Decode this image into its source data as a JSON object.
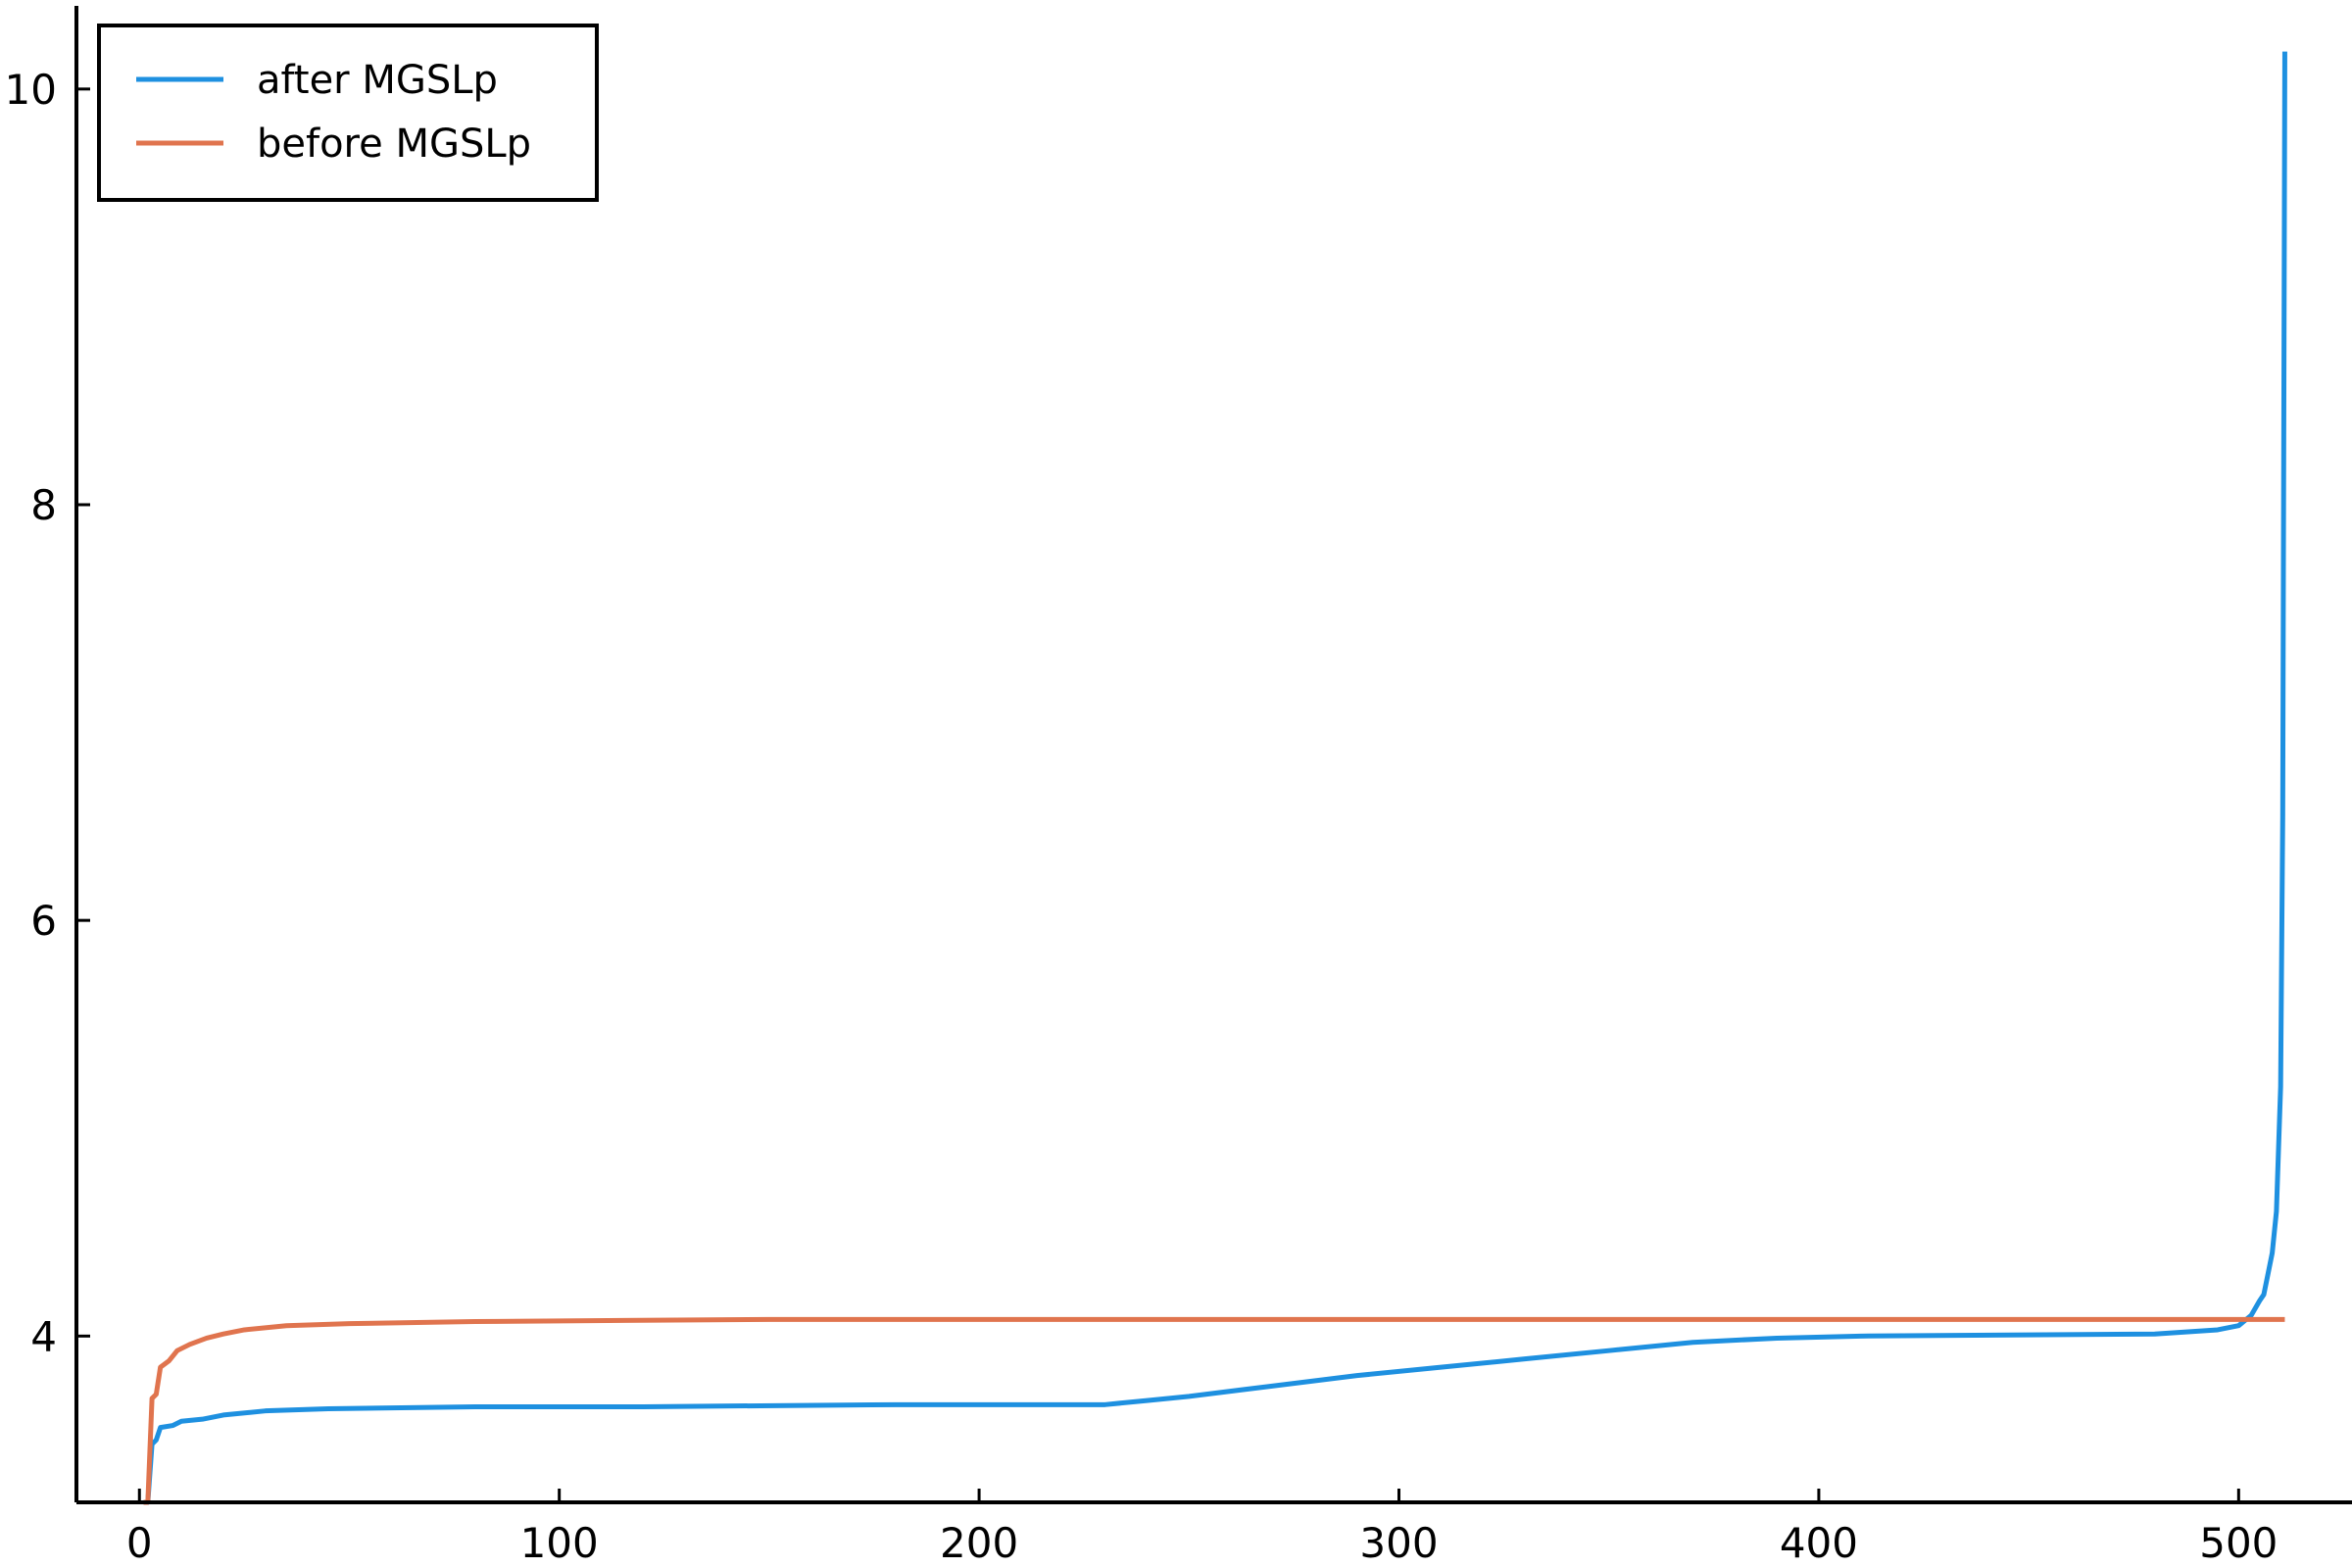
{
  "chart_data": {
    "type": "line",
    "title": "",
    "xlabel": "",
    "ylabel": "",
    "xlim": [
      -15,
      527
    ],
    "ylim": [
      3.2,
      10.4
    ],
    "x_ticks": [
      0,
      100,
      200,
      300,
      400,
      500
    ],
    "y_ticks": [
      4,
      6,
      8,
      10
    ],
    "x_tick_labels": [
      "0",
      "100",
      "200",
      "300",
      "400",
      "500"
    ],
    "y_tick_labels": [
      "4",
      "6",
      "8",
      "10"
    ],
    "grid": false,
    "legend_position": "top-left",
    "series": [
      {
        "name": "after MGSLp",
        "color": "#1e90e0",
        "points": [
          [
            1,
            3.2
          ],
          [
            2,
            3.2
          ],
          [
            3,
            3.48
          ],
          [
            4,
            3.5
          ],
          [
            5,
            3.56
          ],
          [
            8,
            3.57
          ],
          [
            10,
            3.59
          ],
          [
            15,
            3.6
          ],
          [
            20,
            3.62
          ],
          [
            30,
            3.64
          ],
          [
            45,
            3.65
          ],
          [
            80,
            3.66
          ],
          [
            120,
            3.66
          ],
          [
            180,
            3.67
          ],
          [
            230,
            3.67
          ],
          [
            240,
            3.69
          ],
          [
            250,
            3.71
          ],
          [
            270,
            3.76
          ],
          [
            290,
            3.81
          ],
          [
            310,
            3.85
          ],
          [
            330,
            3.89
          ],
          [
            350,
            3.93
          ],
          [
            370,
            3.97
          ],
          [
            390,
            3.99
          ],
          [
            410,
            4.0
          ],
          [
            480,
            4.01
          ],
          [
            495,
            4.03
          ],
          [
            500,
            4.05
          ],
          [
            503,
            4.1
          ],
          [
            505,
            4.17
          ],
          [
            506,
            4.2
          ],
          [
            507,
            4.3
          ],
          [
            508,
            4.4
          ],
          [
            509,
            4.6
          ],
          [
            510,
            5.2
          ],
          [
            510.5,
            6.5
          ],
          [
            511,
            10.18
          ]
        ]
      },
      {
        "name": "before MGSLp",
        "color": "#e0744e",
        "points": [
          [
            1,
            3.2
          ],
          [
            2,
            3.2
          ],
          [
            3,
            3.7
          ],
          [
            4,
            3.72
          ],
          [
            5,
            3.85
          ],
          [
            7,
            3.88
          ],
          [
            9,
            3.93
          ],
          [
            12,
            3.96
          ],
          [
            16,
            3.99
          ],
          [
            20,
            4.01
          ],
          [
            25,
            4.03
          ],
          [
            35,
            4.05
          ],
          [
            50,
            4.06
          ],
          [
            80,
            4.07
          ],
          [
            150,
            4.08
          ],
          [
            511,
            4.08
          ]
        ]
      }
    ]
  }
}
